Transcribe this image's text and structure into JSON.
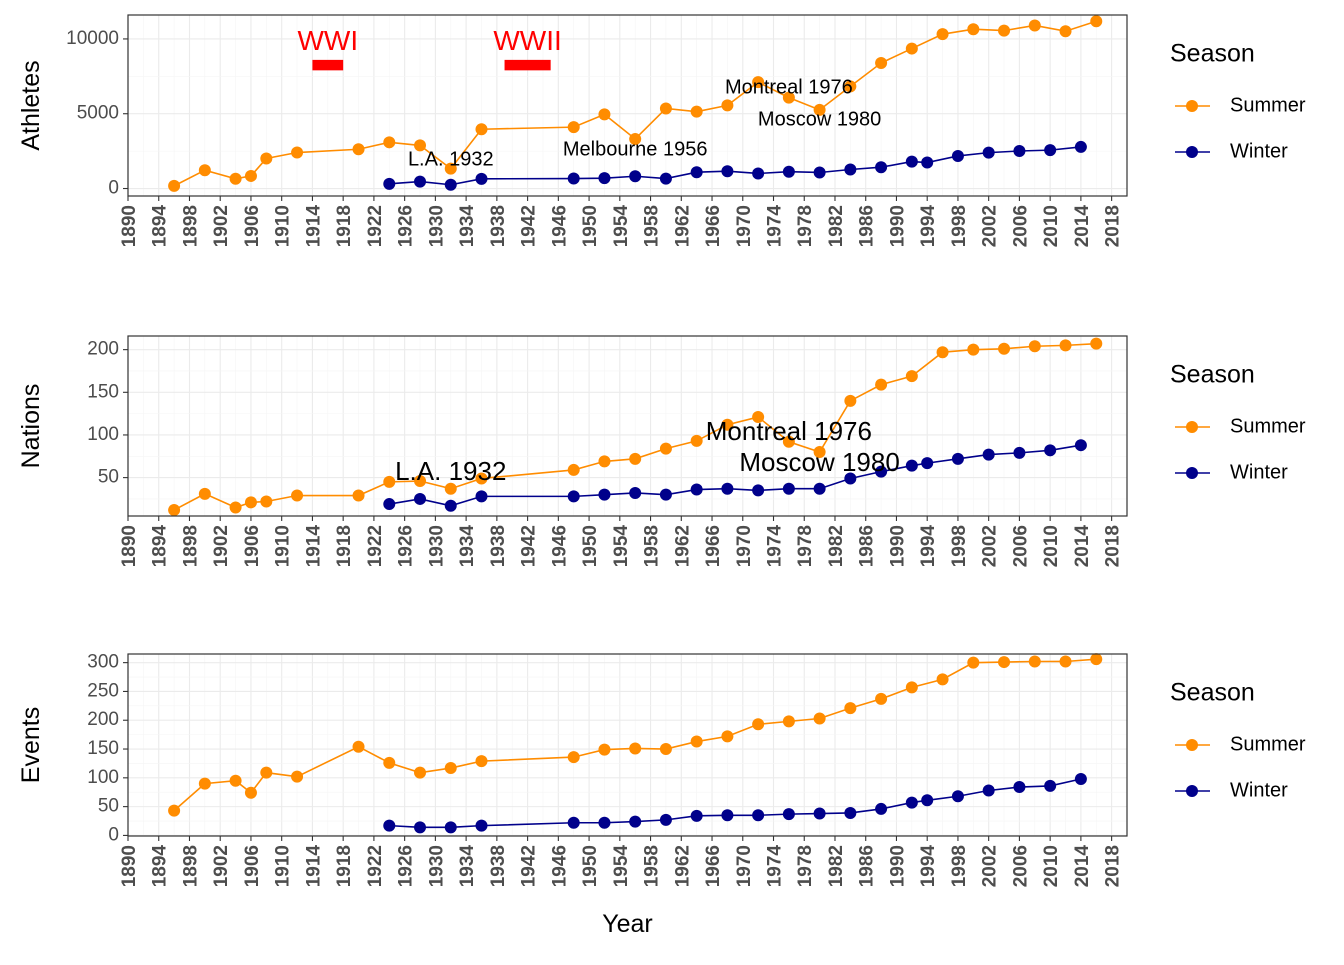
{
  "colors": {
    "summer": "#FF8C00",
    "winter": "#00008B",
    "annotation_red": "#FF0000",
    "panel_border": "#333333",
    "grid_major": "#EBEBEB",
    "grid_minor": "#F5F5F5",
    "axis_text": "#4D4D4D"
  },
  "chart_data": {
    "type": "line",
    "grid": true,
    "legend_placement": "right",
    "xlabel": "Year",
    "x_ticks": [
      1890,
      1894,
      1898,
      1902,
      1906,
      1910,
      1914,
      1918,
      1922,
      1926,
      1930,
      1934,
      1938,
      1942,
      1946,
      1950,
      1954,
      1958,
      1962,
      1966,
      1970,
      1974,
      1978,
      1982,
      1986,
      1990,
      1994,
      1998,
      2002,
      2006,
      2010,
      2014,
      2018
    ],
    "xlim": [
      1890,
      2020
    ],
    "panels": [
      {
        "ylabel": "Athletes",
        "ylim": [
          -500,
          11600
        ],
        "y_ticks": [
          0,
          5000,
          10000
        ],
        "legend": {
          "title": "Season",
          "entries": [
            "Summer",
            "Winter"
          ]
        },
        "series": [
          {
            "name": "Summer",
            "color_key": "summer",
            "x": [
              1896,
              1900,
              1904,
              1906,
              1908,
              1912,
              1920,
              1924,
              1928,
              1932,
              1936,
              1948,
              1952,
              1956,
              1960,
              1964,
              1968,
              1972,
              1976,
              1980,
              1984,
              1988,
              1992,
              1996,
              2000,
              2004,
              2008,
              2012,
              2016
            ],
            "y": [
              176,
              1224,
              650,
              841,
              2008,
              2407,
              2626,
              3089,
              2883,
              1332,
              3963,
              4104,
              4955,
              3314,
              5352,
              5140,
              5558,
              7113,
              6073,
              5259,
              6829,
              8391,
              9356,
              10318,
              10651,
              10557,
              10899,
              10517,
              11179
            ]
          },
          {
            "name": "Winter",
            "color_key": "winter",
            "x": [
              1924,
              1928,
              1932,
              1936,
              1948,
              1952,
              1956,
              1960,
              1964,
              1968,
              1972,
              1976,
              1980,
              1984,
              1988,
              1992,
              1994,
              1998,
              2002,
              2006,
              2010,
              2014
            ],
            "y": [
              313,
              464,
              252,
              646,
              669,
              694,
              821,
              665,
              1091,
              1158,
              1006,
              1123,
              1072,
              1272,
              1423,
              1801,
              1737,
              2176,
              2399,
              2508,
              2566,
              2780
            ]
          }
        ],
        "annotations": [
          {
            "text": "WWI",
            "x": 1916,
            "y": 9750,
            "color_key": "annotation_red",
            "size": 28
          },
          {
            "text": "WWII",
            "x": 1942,
            "y": 9750,
            "color_key": "annotation_red",
            "size": 28
          },
          {
            "text": "L.A. 1932",
            "x": 1932,
            "y": 1900,
            "color_key": "black",
            "size": 20
          },
          {
            "text": "Melbourne 1956",
            "x": 1956,
            "y": 2550,
            "color_key": "black",
            "size": 20
          },
          {
            "text": "Montreal 1976",
            "x": 1976,
            "y": 6700,
            "color_key": "black",
            "size": 20
          },
          {
            "text": "Moscow 1980",
            "x": 1980,
            "y": 4550,
            "color_key": "black",
            "size": 20
          }
        ],
        "bands": [
          {
            "x0": 1914,
            "x1": 1918,
            "y0": 7900,
            "y1": 8600,
            "color_key": "annotation_red"
          },
          {
            "x0": 1939,
            "x1": 1945,
            "y0": 7900,
            "y1": 8600,
            "color_key": "annotation_red"
          }
        ]
      },
      {
        "ylabel": "Nations",
        "ylim": [
          5,
          216
        ],
        "y_ticks": [
          50,
          100,
          150,
          200
        ],
        "legend": {
          "title": "Season",
          "entries": [
            "Summer",
            "Winter"
          ]
        },
        "series": [
          {
            "name": "Summer",
            "color_key": "summer",
            "x": [
              1896,
              1900,
              1904,
              1906,
              1908,
              1912,
              1920,
              1924,
              1928,
              1932,
              1936,
              1948,
              1952,
              1956,
              1960,
              1964,
              1968,
              1972,
              1976,
              1980,
              1984,
              1988,
              1992,
              1996,
              2000,
              2004,
              2008,
              2012,
              2016
            ],
            "y": [
              12,
              31,
              15,
              21,
              22,
              29,
              29,
              45,
              46,
              37,
              49,
              59,
              69,
              72,
              84,
              93,
              112,
              121,
              92,
              80,
              140,
              159,
              169,
              197,
              200,
              201,
              204,
              205,
              207
            ]
          },
          {
            "name": "Winter",
            "color_key": "winter",
            "x": [
              1924,
              1928,
              1932,
              1936,
              1948,
              1952,
              1956,
              1960,
              1964,
              1968,
              1972,
              1976,
              1980,
              1984,
              1988,
              1992,
              1994,
              1998,
              2002,
              2006,
              2010,
              2014
            ],
            "y": [
              19,
              25,
              17,
              28,
              28,
              30,
              32,
              30,
              36,
              37,
              35,
              37,
              37,
              49,
              57,
              64,
              67,
              72,
              77,
              79,
              82,
              88
            ]
          }
        ],
        "annotations": [
          {
            "text": "L.A. 1932",
            "x": 1932,
            "y": 55,
            "color_key": "black",
            "size": 26
          },
          {
            "text": "Montreal 1976",
            "x": 1976,
            "y": 102,
            "color_key": "black",
            "size": 26
          },
          {
            "text": "Moscow 1980",
            "x": 1980,
            "y": 66,
            "color_key": "black",
            "size": 26
          }
        ],
        "bands": []
      },
      {
        "ylabel": "Events",
        "ylim": [
          -1,
          315
        ],
        "y_ticks": [
          0,
          50,
          100,
          150,
          200,
          250,
          300
        ],
        "legend": {
          "title": "Season",
          "entries": [
            "Summer",
            "Winter"
          ]
        },
        "series": [
          {
            "name": "Summer",
            "color_key": "summer",
            "x": [
              1896,
              1900,
              1904,
              1906,
              1908,
              1912,
              1920,
              1924,
              1928,
              1932,
              1936,
              1948,
              1952,
              1956,
              1960,
              1964,
              1968,
              1972,
              1976,
              1980,
              1984,
              1988,
              1992,
              1996,
              2000,
              2004,
              2008,
              2012,
              2016
            ],
            "y": [
              43,
              90,
              95,
              74,
              109,
              102,
              154,
              126,
              109,
              117,
              129,
              136,
              149,
              151,
              150,
              163,
              172,
              193,
              198,
              203,
              221,
              237,
              257,
              271,
              300,
              301,
              302,
              302,
              306
            ]
          },
          {
            "name": "Winter",
            "color_key": "winter",
            "x": [
              1924,
              1928,
              1932,
              1936,
              1948,
              1952,
              1956,
              1960,
              1964,
              1968,
              1972,
              1976,
              1980,
              1984,
              1988,
              1992,
              1994,
              1998,
              2002,
              2006,
              2010,
              2014
            ],
            "y": [
              17,
              14,
              14,
              17,
              22,
              22,
              24,
              27,
              34,
              35,
              35,
              37,
              38,
              39,
              46,
              57,
              61,
              68,
              78,
              84,
              86,
              98
            ]
          }
        ],
        "annotations": [],
        "bands": []
      }
    ]
  }
}
